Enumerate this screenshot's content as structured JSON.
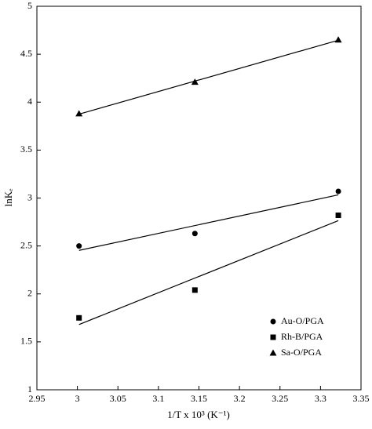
{
  "chart_data": {
    "type": "scatter",
    "xlabel": "1/T x 10³ (K⁻¹)",
    "ylabel": "lnKₑ",
    "xlim": [
      2.95,
      3.35
    ],
    "xticks": [
      2.95,
      3,
      3.05,
      3.1,
      3.15,
      3.2,
      3.25,
      3.3,
      3.35
    ],
    "ylim": [
      1,
      5
    ],
    "yticks": [
      1,
      1.5,
      2,
      2.5,
      3,
      3.5,
      4,
      4.5,
      5
    ],
    "trendline": true,
    "legend": "lower right",
    "series": [
      {
        "name": "Au-O/PGA",
        "marker": "circle",
        "color": "#000000",
        "x": [
          3.002,
          3.145,
          3.322
        ],
        "values": [
          2.5,
          2.63,
          3.07
        ]
      },
      {
        "name": "Rh-B/PGA",
        "marker": "square",
        "color": "#000000",
        "x": [
          3.002,
          3.145,
          3.322
        ],
        "values": [
          1.75,
          2.04,
          2.82
        ]
      },
      {
        "name": "Sa-O/PGA",
        "marker": "triangle",
        "color": "#000000",
        "x": [
          3.002,
          3.145,
          3.322
        ],
        "values": [
          3.88,
          4.21,
          4.65
        ]
      }
    ]
  }
}
